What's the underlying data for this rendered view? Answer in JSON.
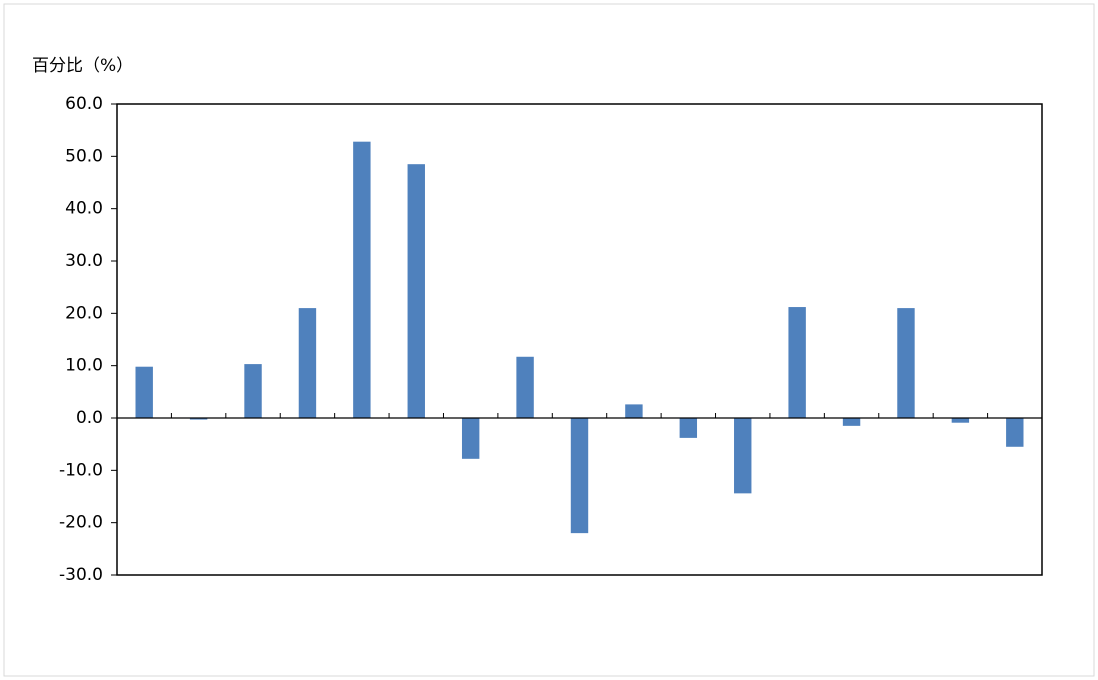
{
  "chart_data": {
    "type": "bar",
    "y_axis_label": "百分比（%）",
    "categories": [
      null,
      null,
      null,
      null,
      null,
      null,
      null,
      null,
      null,
      null,
      null,
      null,
      null,
      null,
      null,
      null,
      null
    ],
    "values": [
      9.8,
      -0.3,
      10.3,
      21.0,
      52.8,
      48.5,
      -7.8,
      11.7,
      -22.0,
      2.6,
      -3.8,
      -14.4,
      21.2,
      -1.5,
      21.0,
      -0.9,
      -5.5
    ],
    "color": "#4f81bd",
    "ylim": [
      -30,
      60
    ],
    "yticks": [
      {
        "value": -30,
        "label": "-30.0"
      },
      {
        "value": -20,
        "label": "-20.0"
      },
      {
        "value": -10,
        "label": "-10.0"
      },
      {
        "value": 0,
        "label": "0.0"
      },
      {
        "value": 10,
        "label": "10.0"
      },
      {
        "value": 20,
        "label": "20.0"
      },
      {
        "value": 30,
        "label": "30.0"
      },
      {
        "value": 40,
        "label": "40.0"
      },
      {
        "value": 50,
        "label": "50.0"
      },
      {
        "value": 60,
        "label": "60.0"
      }
    ],
    "grid": false
  }
}
